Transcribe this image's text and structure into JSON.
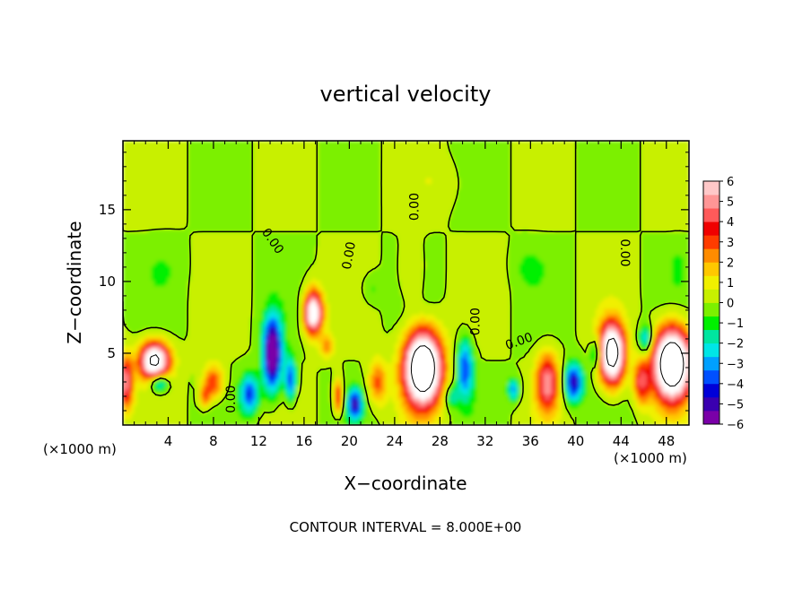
{
  "chart_data": {
    "type": "heatmap",
    "title": "vertical velocity",
    "xlabel": "X−coordinate",
    "ylabel": "Z−coordinate",
    "x_unit_left": "(×1000 m)",
    "x_unit_right": "(×1000 m)",
    "footer": "CONTOUR INTERVAL = 8.000E+00",
    "xlim": [
      0,
      50
    ],
    "ylim": [
      0,
      19.8
    ],
    "x_ticks": [
      "4",
      "8",
      "12",
      "16",
      "20",
      "24",
      "28",
      "32",
      "36",
      "40",
      "44",
      "48"
    ],
    "x_tick_values": [
      4,
      8,
      12,
      16,
      20,
      24,
      28,
      32,
      36,
      40,
      44,
      48
    ],
    "y_ticks": [
      "5",
      "10",
      "15"
    ],
    "y_tick_values": [
      5,
      10,
      15
    ],
    "colorbar": {
      "min": -6,
      "max": 6,
      "labels": [
        "6",
        "5",
        "4",
        "3",
        "2",
        "1",
        "0",
        "−1",
        "−2",
        "−3",
        "−4",
        "−5",
        "−6"
      ],
      "label_values": [
        6,
        5,
        4,
        3,
        2,
        1,
        0,
        -1,
        -2,
        -3,
        -4,
        -5,
        -6
      ],
      "colors": [
        "#7a00a8",
        "#3a00b0",
        "#0000d8",
        "#0050ff",
        "#00a0ff",
        "#00e6e6",
        "#00e6a0",
        "#00f000",
        "#7cf000",
        "#c8f000",
        "#f0f000",
        "#ffc800",
        "#ff8c00",
        "#ff3c00",
        "#f00000",
        "#ff5a5a",
        "#ff9696",
        "#ffc8c8"
      ]
    },
    "contour_labels": [
      {
        "text": "0.00",
        "x": 13.2,
        "y": 12.8,
        "angle": 55
      },
      {
        "text": "0.00",
        "x": 20.0,
        "y": 11.8,
        "angle": -80
      },
      {
        "text": "0.00",
        "x": 25.8,
        "y": 15.2,
        "angle": -90
      },
      {
        "text": "0.00",
        "x": 9.6,
        "y": 1.8,
        "angle": -90
      },
      {
        "text": "0.00",
        "x": 31.2,
        "y": 7.2,
        "angle": -90
      },
      {
        "text": "0.00",
        "x": 35.0,
        "y": 5.8,
        "angle": -20
      },
      {
        "text": "0.00",
        "x": 44.3,
        "y": 12.0,
        "angle": 90
      }
    ],
    "updrafts": [
      {
        "x": 2.8,
        "z": 4.5,
        "amp": 9,
        "sx": 1.3,
        "sz": 1.3
      },
      {
        "x": 13.2,
        "z": 5.0,
        "amp": -7,
        "sx": 0.8,
        "sz": 2.5
      },
      {
        "x": 16.8,
        "z": 8.0,
        "amp": 9,
        "sx": 0.8,
        "sz": 1.5
      },
      {
        "x": 26.5,
        "z": 4.0,
        "amp": 12,
        "sx": 1.6,
        "sz": 2.5
      },
      {
        "x": 43.2,
        "z": 5.0,
        "amp": 10,
        "sx": 1.1,
        "sz": 2.1
      },
      {
        "x": 48.5,
        "z": 4.3,
        "amp": 12,
        "sx": 1.6,
        "sz": 2.4
      },
      {
        "x": 37.5,
        "z": 3.0,
        "amp": 5,
        "sx": 1.0,
        "sz": 2.0
      }
    ]
  }
}
